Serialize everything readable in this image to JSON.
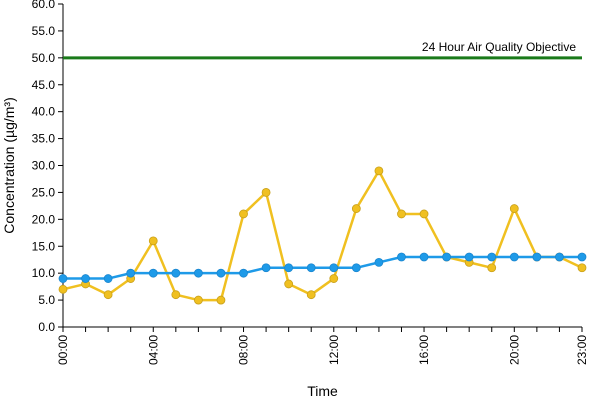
{
  "chart_data": {
    "type": "line",
    "title": "",
    "xlabel": "Time",
    "ylabel": "Concentration (µg/m³)",
    "ylim": [
      0,
      60
    ],
    "y_ticks": [
      "0.0",
      "5.0",
      "10.0",
      "15.0",
      "20.0",
      "25.0",
      "30.0",
      "35.0",
      "40.0",
      "45.0",
      "50.0",
      "55.0",
      "60.0"
    ],
    "x": [
      "00:00",
      "01:00",
      "02:00",
      "03:00",
      "04:00",
      "05:00",
      "06:00",
      "07:00",
      "08:00",
      "09:00",
      "10:00",
      "11:00",
      "12:00",
      "13:00",
      "14:00",
      "15:00",
      "16:00",
      "17:00",
      "18:00",
      "19:00",
      "20:00",
      "21:00",
      "22:00",
      "23:00"
    ],
    "x_tick_labels": [
      "00:00",
      "04:00",
      "08:00",
      "12:00",
      "16:00",
      "20:00",
      "23:00"
    ],
    "grid": false,
    "legend": "none",
    "series": [
      {
        "color": "#f0c020",
        "values": [
          7,
          8,
          6,
          9,
          16,
          6,
          5,
          5,
          21,
          25,
          8,
          6,
          9,
          22,
          29,
          21,
          21,
          13,
          12,
          11,
          22,
          13,
          13,
          11
        ]
      },
      {
        "color": "#1e9ae8",
        "values": [
          9,
          9,
          9,
          10,
          10,
          10,
          10,
          10,
          10,
          11,
          11,
          11,
          11,
          11,
          12,
          13,
          13,
          13,
          13,
          13,
          13,
          13,
          13,
          13
        ]
      }
    ],
    "reference_line": {
      "value": 50,
      "label": "24 Hour Air Quality Objective",
      "color": "#1a7a1a"
    }
  }
}
